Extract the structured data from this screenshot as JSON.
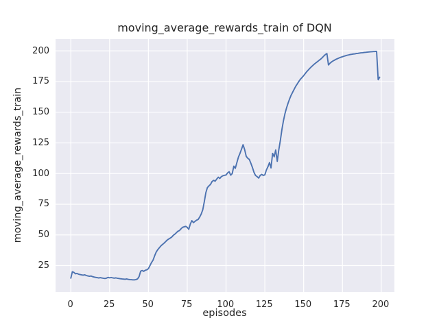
{
  "chart_data": {
    "type": "line",
    "title": "moving_average_rewards_train of DQN",
    "xlabel": "episodes",
    "ylabel": "moving_average_rewards_train",
    "x_ticks": [
      0,
      25,
      50,
      75,
      100,
      125,
      150,
      175,
      200
    ],
    "y_ticks": [
      25,
      50,
      75,
      100,
      125,
      150,
      175,
      200
    ],
    "xlim": [
      -9.8,
      208.9
    ],
    "ylim": [
      3.5,
      209.6
    ],
    "grid": true,
    "legend": "none",
    "style": {
      "axes_background": "#eaeaf2",
      "grid_color": "#ffffff",
      "line_color": "#4c72b0",
      "text_color": "#262626",
      "figure_background": "#ffffff"
    },
    "series": [
      {
        "name": "moving_average_rewards_train",
        "x_start": 0,
        "x_step": 1,
        "values": [
          14.8,
          20.0,
          19.5,
          18.3,
          18.6,
          18.0,
          17.7,
          17.4,
          17.2,
          17.5,
          16.9,
          16.6,
          16.3,
          16.5,
          16.0,
          15.7,
          15.4,
          15.2,
          14.9,
          15.2,
          14.9,
          14.7,
          14.5,
          14.8,
          15.4,
          15.0,
          15.3,
          15.0,
          14.8,
          15.0,
          14.7,
          14.5,
          14.3,
          14.1,
          14.0,
          13.9,
          14.1,
          13.8,
          13.6,
          13.5,
          13.4,
          13.4,
          13.6,
          14.2,
          16.0,
          20.5,
          21.0,
          20.3,
          21.2,
          21.6,
          22.5,
          25.0,
          27.5,
          29.5,
          33.0,
          36.0,
          38.0,
          39.5,
          41.0,
          42.2,
          43.2,
          44.5,
          45.7,
          46.6,
          47.4,
          48.2,
          49.6,
          50.6,
          51.8,
          53.0,
          53.6,
          55.0,
          56.2,
          56.6,
          57.0,
          56.2,
          54.6,
          59.0,
          61.6,
          60.0,
          61.0,
          62.0,
          62.6,
          64.5,
          67.0,
          70.5,
          77.0,
          84.5,
          88.5,
          90.0,
          91.2,
          93.5,
          94.5,
          93.8,
          95.5,
          97.0,
          96.0,
          97.5,
          98.2,
          98.6,
          98.8,
          100.5,
          101.5,
          98.7,
          100.0,
          106.0,
          104.3,
          109.0,
          113.5,
          116.5,
          120.0,
          123.5,
          119.5,
          114.0,
          112.5,
          111.5,
          108.5,
          105.0,
          101.0,
          98.5,
          97.5,
          96.3,
          98.5,
          99.3,
          98.5,
          99.0,
          103.0,
          105.5,
          109.0,
          104.6,
          116.4,
          113.7,
          119.2,
          110.0,
          119.2,
          127.0,
          136.0,
          143.0,
          149.0,
          153.5,
          157.5,
          161.0,
          164.0,
          166.5,
          169.0,
          171.3,
          173.3,
          175.2,
          177.0,
          178.4,
          179.8,
          181.4,
          183.0,
          184.4,
          185.8,
          187.0,
          188.2,
          189.3,
          190.3,
          191.3,
          192.3,
          193.3,
          194.5,
          195.8,
          197.0,
          197.8,
          188.5,
          190.0,
          191.0,
          191.8,
          192.5,
          193.2,
          193.8,
          194.3,
          194.8,
          195.2,
          195.6,
          196.0,
          196.4,
          196.7,
          197.0,
          197.2,
          197.4,
          197.6,
          197.8,
          198.0,
          198.2,
          198.4,
          198.5,
          198.7,
          198.8,
          199.0,
          199.1,
          199.2,
          199.3,
          199.4,
          199.5,
          199.6,
          176.5,
          178.5
        ]
      }
    ]
  }
}
